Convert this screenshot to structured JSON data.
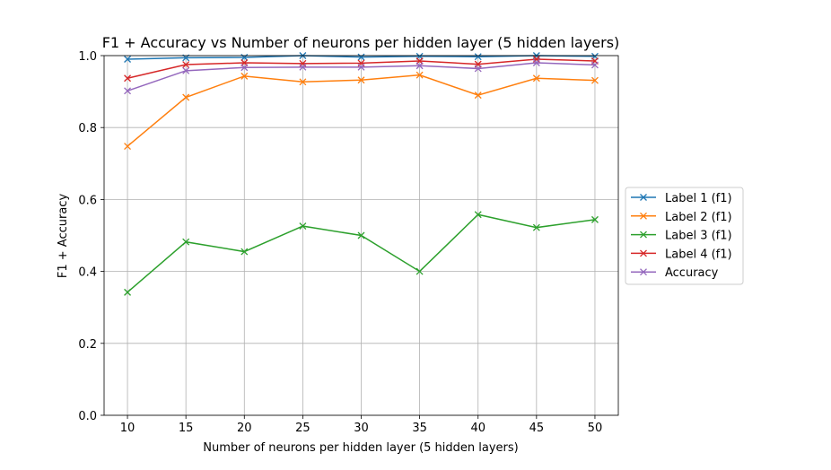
{
  "chart_data": {
    "type": "line",
    "title": "F1 + Accuracy vs Number of neurons per hidden layer (5 hidden layers)",
    "xlabel": "Number of neurons per hidden layer (5 hidden layers)",
    "ylabel": "F1 + Accuracy",
    "x": [
      10,
      15,
      20,
      25,
      30,
      35,
      40,
      45,
      50
    ],
    "xlim": [
      8,
      52
    ],
    "ylim": [
      0.0,
      1.0
    ],
    "xticks": [
      "10",
      "15",
      "20",
      "25",
      "30",
      "35",
      "40",
      "45",
      "50"
    ],
    "yticks": [
      "0.0",
      "0.2",
      "0.4",
      "0.6",
      "0.8",
      "1.0"
    ],
    "grid": true,
    "legend_position": "center-right outside",
    "marker": "x",
    "series": [
      {
        "name": "Label 1 (f1)",
        "color": "#1f77b4",
        "values": [
          0.99,
          0.994,
          0.995,
          1.0,
          0.996,
          0.998,
          0.997,
          1.0,
          0.998
        ]
      },
      {
        "name": "Label 2 (f1)",
        "color": "#ff7f0e",
        "values": [
          0.748,
          0.884,
          0.943,
          0.927,
          0.932,
          0.946,
          0.89,
          0.937,
          0.931
        ]
      },
      {
        "name": "Label 3 (f1)",
        "color": "#2ca02c",
        "values": [
          0.342,
          0.482,
          0.455,
          0.526,
          0.5,
          0.4,
          0.558,
          0.522,
          0.544
        ]
      },
      {
        "name": "Label 4 (f1)",
        "color": "#d62728",
        "values": [
          0.937,
          0.975,
          0.98,
          0.978,
          0.979,
          0.985,
          0.976,
          0.99,
          0.985
        ]
      },
      {
        "name": "Accuracy",
        "color": "#9467bd",
        "values": [
          0.902,
          0.958,
          0.967,
          0.968,
          0.968,
          0.972,
          0.964,
          0.98,
          0.974
        ]
      }
    ]
  }
}
